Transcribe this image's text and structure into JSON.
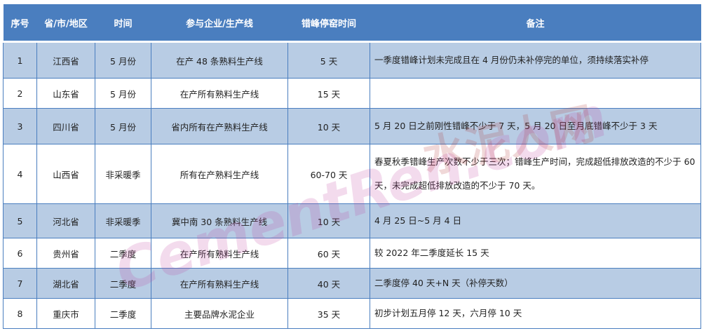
{
  "header": [
    "序号",
    "省/市/地区",
    "时间",
    "参与企业/生产线",
    "错峰停窑时间",
    "备注"
  ],
  "rows": [
    [
      "1",
      "江西省",
      "5 月份",
      "在产 48 条熟料生产线",
      "5 天",
      "一季度错峰计划未完成且在 4 月份仍未补停完的单位，须持续落实补停"
    ],
    [
      "2",
      "山东省",
      "5 月份",
      "在产所有熟料生产线",
      "15 天",
      ""
    ],
    [
      "3",
      "四川省",
      "5 月份",
      "省内所有在产熟料生产线",
      "10 天",
      "5 月 20 日之前刚性错峰不少于 7 天，5 月 20 日至月底错峰不少于 3 天"
    ],
    [
      "4",
      "山西省",
      "非采暖季",
      "所有在产熟料生产线",
      "60-70 天",
      "春夏秋季错峰生产次数不少于三次；错峰生产时间，完成超低排放改造的不少于 60 天，未完成超低排放改造的不少于 70 天。"
    ],
    [
      "5",
      "河北省",
      "非采暖季",
      "冀中南 30 条熟料生产线",
      "10 天",
      "4 月 25 日~5 月 4 日"
    ],
    [
      "6",
      "贵州省",
      "二季度",
      "在产所有熟料生产线",
      "60 天",
      "较 2022 年二季度延长 15 天"
    ],
    [
      "7",
      "湖北省",
      "二季度",
      "在产所有熟料生产线",
      "40 天",
      "二季度停 40 天+N 天（补停天数）"
    ],
    [
      "8",
      "重庆市",
      "二季度",
      "主要品牌水泥企业",
      "35 天",
      "初步计划五月停 12 天，六月停 10 天"
    ]
  ],
  "watermark": {
    "cn": "水泥人网",
    "en": "CementRen.com"
  },
  "colors": {
    "header": "#4a7ebf",
    "stripe": "#b8cce4"
  }
}
